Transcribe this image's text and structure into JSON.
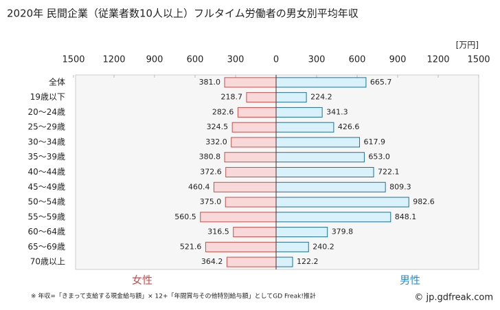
{
  "chart_data": {
    "type": "butterfly",
    "title": "2020年 民間企業（従業者数10人以上）フルタイム労働者の男女別平均年収",
    "unit": "[万円]",
    "categories": [
      "全体",
      "19歳以下",
      "20～24歳",
      "25～29歳",
      "30～34歳",
      "35～39歳",
      "40～44歳",
      "45～49歳",
      "50～54歳",
      "55～59歳",
      "60～64歳",
      "65～69歳",
      "70歳以上"
    ],
    "series": [
      {
        "name": "女性",
        "side": "left",
        "color": "#f8d8d8",
        "stroke": "#c0504d",
        "text_color": "#c0504d",
        "values": [
          381.0,
          218.7,
          282.6,
          324.5,
          332.0,
          380.8,
          372.6,
          460.4,
          375.0,
          560.5,
          316.5,
          521.6,
          364.2
        ],
        "value_labels": [
          "381.0",
          "218.7",
          "282.6",
          "324.5",
          "332.0",
          "380.8",
          "372.6",
          "460.4",
          "375.0",
          "560.5",
          "316.5",
          "521.6",
          "364.2"
        ]
      },
      {
        "name": "男性",
        "side": "right",
        "color": "#d9f1fa",
        "stroke": "#1f6f8f",
        "text_color": "#2e8bc0",
        "values": [
          665.7,
          224.2,
          341.3,
          426.6,
          617.9,
          653.0,
          722.1,
          809.3,
          982.6,
          848.1,
          379.8,
          240.2,
          122.2
        ],
        "value_labels": [
          "665.7",
          "224.2",
          "341.3",
          "426.6",
          "617.9",
          "653.0",
          "722.1",
          "809.3",
          "982.6",
          "848.1",
          "379.8",
          "240.2",
          "122.2"
        ]
      }
    ],
    "xlim": [
      0,
      1500
    ],
    "xticks": [
      0,
      300,
      600,
      900,
      1200,
      1500
    ],
    "footnote": "※ 年収=「きまって支給する現金給与額」× 12+「年間賞与その他特別給与額」としてGD Freak!推計",
    "credit": "© jp.gdfreak.com"
  }
}
